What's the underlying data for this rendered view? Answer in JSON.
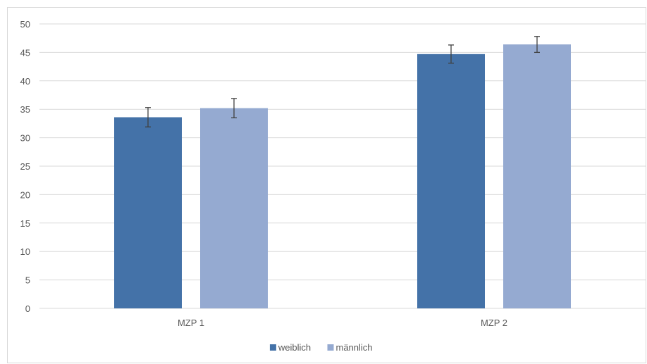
{
  "chart_data": {
    "type": "bar",
    "title": "",
    "xlabel": "",
    "ylabel": "",
    "categories": [
      "MZP 1",
      "MZP 2"
    ],
    "series": [
      {
        "name": "weiblich",
        "values": [
          33.6,
          44.7
        ],
        "error": [
          1.7,
          1.6
        ],
        "color": "#4472a8"
      },
      {
        "name": "männlich",
        "values": [
          35.2,
          46.4
        ],
        "error": [
          1.7,
          1.4
        ],
        "color": "#95aad1"
      }
    ],
    "ylim": [
      0,
      50
    ],
    "yticks": [
      0,
      5,
      10,
      15,
      20,
      25,
      30,
      35,
      40,
      45,
      50
    ],
    "grid": true,
    "legend_position": "bottom",
    "colors": {
      "gridline": "#d9d9d9",
      "axis_text": "#595959",
      "error_bar": "#404040"
    }
  }
}
